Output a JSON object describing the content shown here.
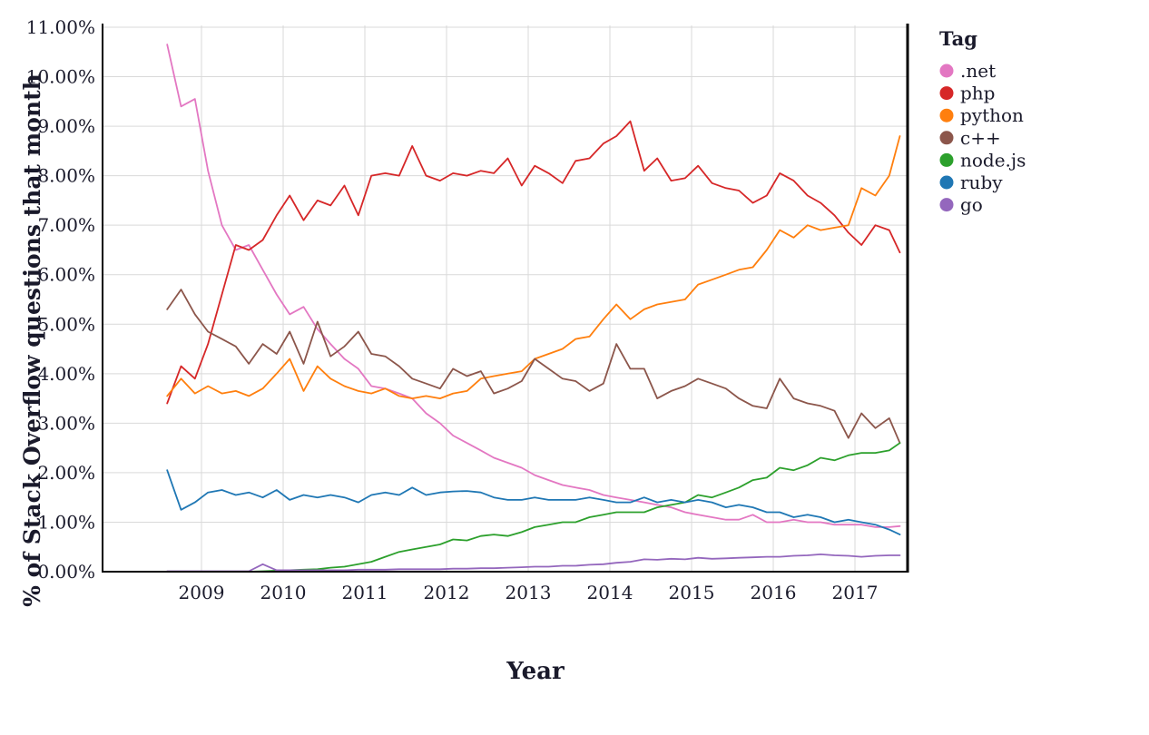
{
  "chart_data": {
    "type": "line",
    "title": "",
    "xlabel": "Year",
    "ylabel": "% of Stack Overflow questions that month",
    "legend_title": "Tag",
    "legend_position": "right",
    "grid": true,
    "xlim": [
      2007.79,
      2017.65
    ],
    "ylim": [
      0,
      11
    ],
    "x_ticks": [
      {
        "value": 2009,
        "label": "2009"
      },
      {
        "value": 2010,
        "label": "2010"
      },
      {
        "value": 2011,
        "label": "2011"
      },
      {
        "value": 2012,
        "label": "2012"
      },
      {
        "value": 2013,
        "label": "2013"
      },
      {
        "value": 2014,
        "label": "2014"
      },
      {
        "value": 2015,
        "label": "2015"
      },
      {
        "value": 2016,
        "label": "2016"
      },
      {
        "value": 2017,
        "label": "2017"
      }
    ],
    "y_ticks": [
      {
        "value": 0,
        "label": "0.00%"
      },
      {
        "value": 1,
        "label": "1.00%"
      },
      {
        "value": 2,
        "label": "2.00%"
      },
      {
        "value": 3,
        "label": "3.00%"
      },
      {
        "value": 4,
        "label": "4.00%"
      },
      {
        "value": 5,
        "label": "5.00%"
      },
      {
        "value": 6,
        "label": "6.00%"
      },
      {
        "value": 7,
        "label": "7.00%"
      },
      {
        "value": 8,
        "label": "8.00%"
      },
      {
        "value": 9,
        "label": "9.00%"
      },
      {
        "value": 10,
        "label": "10.00%"
      },
      {
        "value": 11,
        "label": "11.00%"
      }
    ],
    "x": [
      2008.58,
      2008.75,
      2008.92,
      2009.08,
      2009.25,
      2009.42,
      2009.58,
      2009.75,
      2009.92,
      2010.08,
      2010.25,
      2010.42,
      2010.58,
      2010.75,
      2010.92,
      2011.08,
      2011.25,
      2011.42,
      2011.58,
      2011.75,
      2011.92,
      2012.08,
      2012.25,
      2012.42,
      2012.58,
      2012.75,
      2012.92,
      2013.08,
      2013.25,
      2013.42,
      2013.58,
      2013.75,
      2013.92,
      2014.08,
      2014.25,
      2014.42,
      2014.58,
      2014.75,
      2014.92,
      2015.08,
      2015.25,
      2015.42,
      2015.58,
      2015.75,
      2015.92,
      2016.08,
      2016.25,
      2016.42,
      2016.58,
      2016.75,
      2016.92,
      2017.08,
      2017.25,
      2017.42,
      2017.55
    ],
    "series": [
      {
        "name": ".net",
        "color": "#e377c2",
        "values": [
          10.65,
          9.4,
          9.55,
          8.1,
          7.0,
          6.5,
          6.6,
          6.1,
          5.6,
          5.2,
          5.35,
          4.9,
          4.6,
          4.3,
          4.1,
          3.75,
          3.7,
          3.6,
          3.5,
          3.2,
          3.0,
          2.75,
          2.6,
          2.45,
          2.3,
          2.2,
          2.1,
          1.95,
          1.85,
          1.75,
          1.7,
          1.65,
          1.55,
          1.5,
          1.45,
          1.4,
          1.35,
          1.3,
          1.2,
          1.15,
          1.1,
          1.05,
          1.05,
          1.15,
          1.0,
          1.0,
          1.05,
          1.0,
          1.0,
          0.95,
          0.95,
          0.95,
          0.9,
          0.9,
          0.92
        ]
      },
      {
        "name": "php",
        "color": "#d62728",
        "values": [
          3.4,
          4.15,
          3.9,
          4.6,
          5.6,
          6.6,
          6.5,
          6.7,
          7.2,
          7.6,
          7.1,
          7.5,
          7.4,
          7.8,
          7.2,
          8.0,
          8.05,
          8.0,
          8.6,
          8.0,
          7.9,
          8.05,
          8.0,
          8.1,
          8.05,
          8.35,
          7.8,
          8.2,
          8.05,
          7.85,
          8.3,
          8.35,
          8.65,
          8.8,
          9.1,
          8.1,
          8.35,
          7.9,
          7.95,
          8.2,
          7.85,
          7.75,
          7.7,
          7.45,
          7.6,
          8.05,
          7.9,
          7.6,
          7.45,
          7.2,
          6.85,
          6.6,
          7.0,
          6.9,
          6.45
        ]
      },
      {
        "name": "python",
        "color": "#ff7f0e",
        "values": [
          3.55,
          3.9,
          3.6,
          3.75,
          3.6,
          3.65,
          3.55,
          3.7,
          4.0,
          4.3,
          3.65,
          4.15,
          3.9,
          3.75,
          3.65,
          3.6,
          3.7,
          3.55,
          3.5,
          3.55,
          3.5,
          3.6,
          3.65,
          3.9,
          3.95,
          4.0,
          4.05,
          4.3,
          4.4,
          4.5,
          4.7,
          4.75,
          5.1,
          5.4,
          5.1,
          5.3,
          5.4,
          5.45,
          5.5,
          5.8,
          5.9,
          6.0,
          6.1,
          6.15,
          6.5,
          6.9,
          6.75,
          7.0,
          6.9,
          6.95,
          7.0,
          7.75,
          7.6,
          8.0,
          8.8
        ]
      },
      {
        "name": "c++",
        "color": "#8c564b",
        "values": [
          5.3,
          5.7,
          5.2,
          4.85,
          4.7,
          4.55,
          4.2,
          4.6,
          4.4,
          4.85,
          4.2,
          5.05,
          4.35,
          4.55,
          4.85,
          4.4,
          4.35,
          4.15,
          3.9,
          3.8,
          3.7,
          4.1,
          3.95,
          4.05,
          3.6,
          3.7,
          3.85,
          4.3,
          4.1,
          3.9,
          3.85,
          3.65,
          3.8,
          4.6,
          4.1,
          4.1,
          3.5,
          3.65,
          3.75,
          3.9,
          3.8,
          3.7,
          3.5,
          3.35,
          3.3,
          3.9,
          3.5,
          3.4,
          3.35,
          3.25,
          2.7,
          3.2,
          2.9,
          3.1,
          2.6
        ]
      },
      {
        "name": "node.js",
        "color": "#2ca02c",
        "values": [
          0.0,
          0.0,
          0.0,
          0.0,
          0.0,
          0.0,
          0.0,
          0.01,
          0.02,
          0.03,
          0.04,
          0.05,
          0.08,
          0.1,
          0.15,
          0.2,
          0.3,
          0.4,
          0.45,
          0.5,
          0.55,
          0.65,
          0.63,
          0.72,
          0.75,
          0.72,
          0.8,
          0.9,
          0.95,
          1.0,
          1.0,
          1.1,
          1.15,
          1.2,
          1.2,
          1.2,
          1.3,
          1.35,
          1.4,
          1.55,
          1.5,
          1.6,
          1.7,
          1.85,
          1.9,
          2.1,
          2.05,
          2.15,
          2.3,
          2.25,
          2.35,
          2.4,
          2.4,
          2.45,
          2.6
        ]
      },
      {
        "name": "ruby",
        "color": "#1f77b4",
        "values": [
          2.05,
          1.25,
          1.4,
          1.6,
          1.65,
          1.55,
          1.6,
          1.5,
          1.65,
          1.45,
          1.55,
          1.5,
          1.55,
          1.5,
          1.4,
          1.55,
          1.6,
          1.55,
          1.7,
          1.55,
          1.6,
          1.62,
          1.63,
          1.6,
          1.5,
          1.45,
          1.45,
          1.5,
          1.45,
          1.45,
          1.45,
          1.5,
          1.45,
          1.4,
          1.4,
          1.5,
          1.4,
          1.45,
          1.4,
          1.45,
          1.4,
          1.3,
          1.35,
          1.3,
          1.2,
          1.2,
          1.1,
          1.15,
          1.1,
          1.0,
          1.05,
          1.0,
          0.95,
          0.85,
          0.75
        ]
      },
      {
        "name": "go",
        "color": "#9467bd",
        "values": [
          0.01,
          0.01,
          0.01,
          0.01,
          0.01,
          0.01,
          0.01,
          0.15,
          0.03,
          0.03,
          0.03,
          0.03,
          0.03,
          0.03,
          0.04,
          0.04,
          0.04,
          0.05,
          0.05,
          0.05,
          0.05,
          0.06,
          0.06,
          0.07,
          0.07,
          0.08,
          0.09,
          0.1,
          0.1,
          0.12,
          0.12,
          0.14,
          0.15,
          0.18,
          0.2,
          0.25,
          0.24,
          0.26,
          0.25,
          0.28,
          0.26,
          0.27,
          0.28,
          0.29,
          0.3,
          0.3,
          0.32,
          0.33,
          0.35,
          0.33,
          0.32,
          0.3,
          0.32,
          0.33,
          0.33
        ]
      }
    ]
  }
}
